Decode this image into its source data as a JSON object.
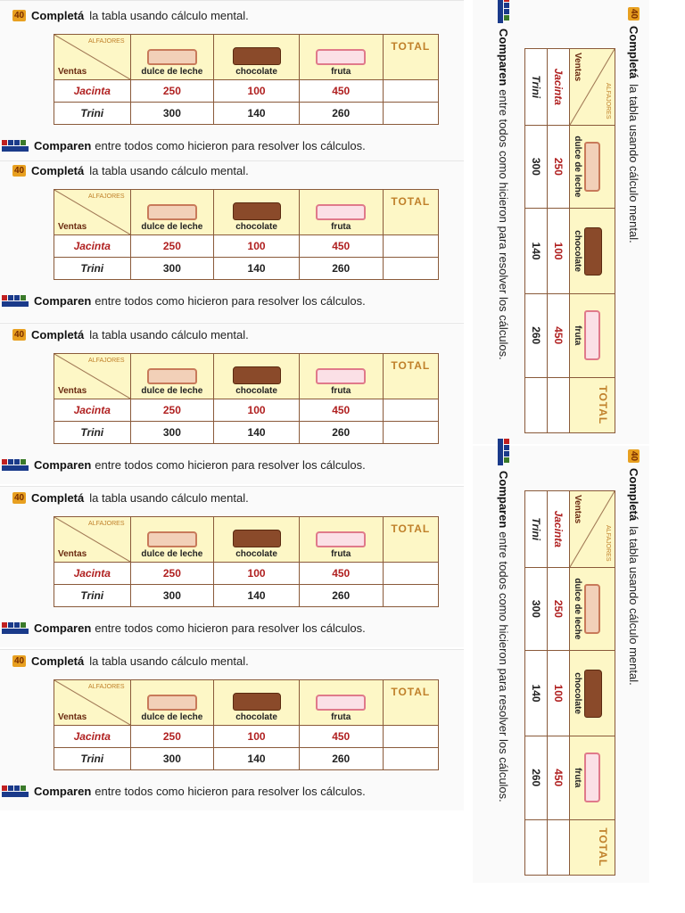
{
  "task": {
    "number": "40",
    "lead": "Completá",
    "rest": "la tabla usando cálculo mental."
  },
  "table": {
    "corner_top": "ALFAJORES",
    "corner_bottom": "Ventas",
    "columns": [
      "dulce de leche",
      "chocolate",
      "fruta"
    ],
    "total_label": "TOTAL",
    "rows": [
      {
        "name": "Jacinta",
        "values": [
          "250",
          "100",
          "450"
        ]
      },
      {
        "name": "Trini",
        "values": [
          "300",
          "140",
          "260"
        ]
      }
    ]
  },
  "closing": {
    "lead": "Comparen",
    "rest": "entre todos como hicieron para resolver los cálculos."
  },
  "colors": {
    "badge": "#e8a020",
    "header_bg": "#fdf7c6",
    "accent_red": "#b02020",
    "border": "#8a5a3a"
  }
}
